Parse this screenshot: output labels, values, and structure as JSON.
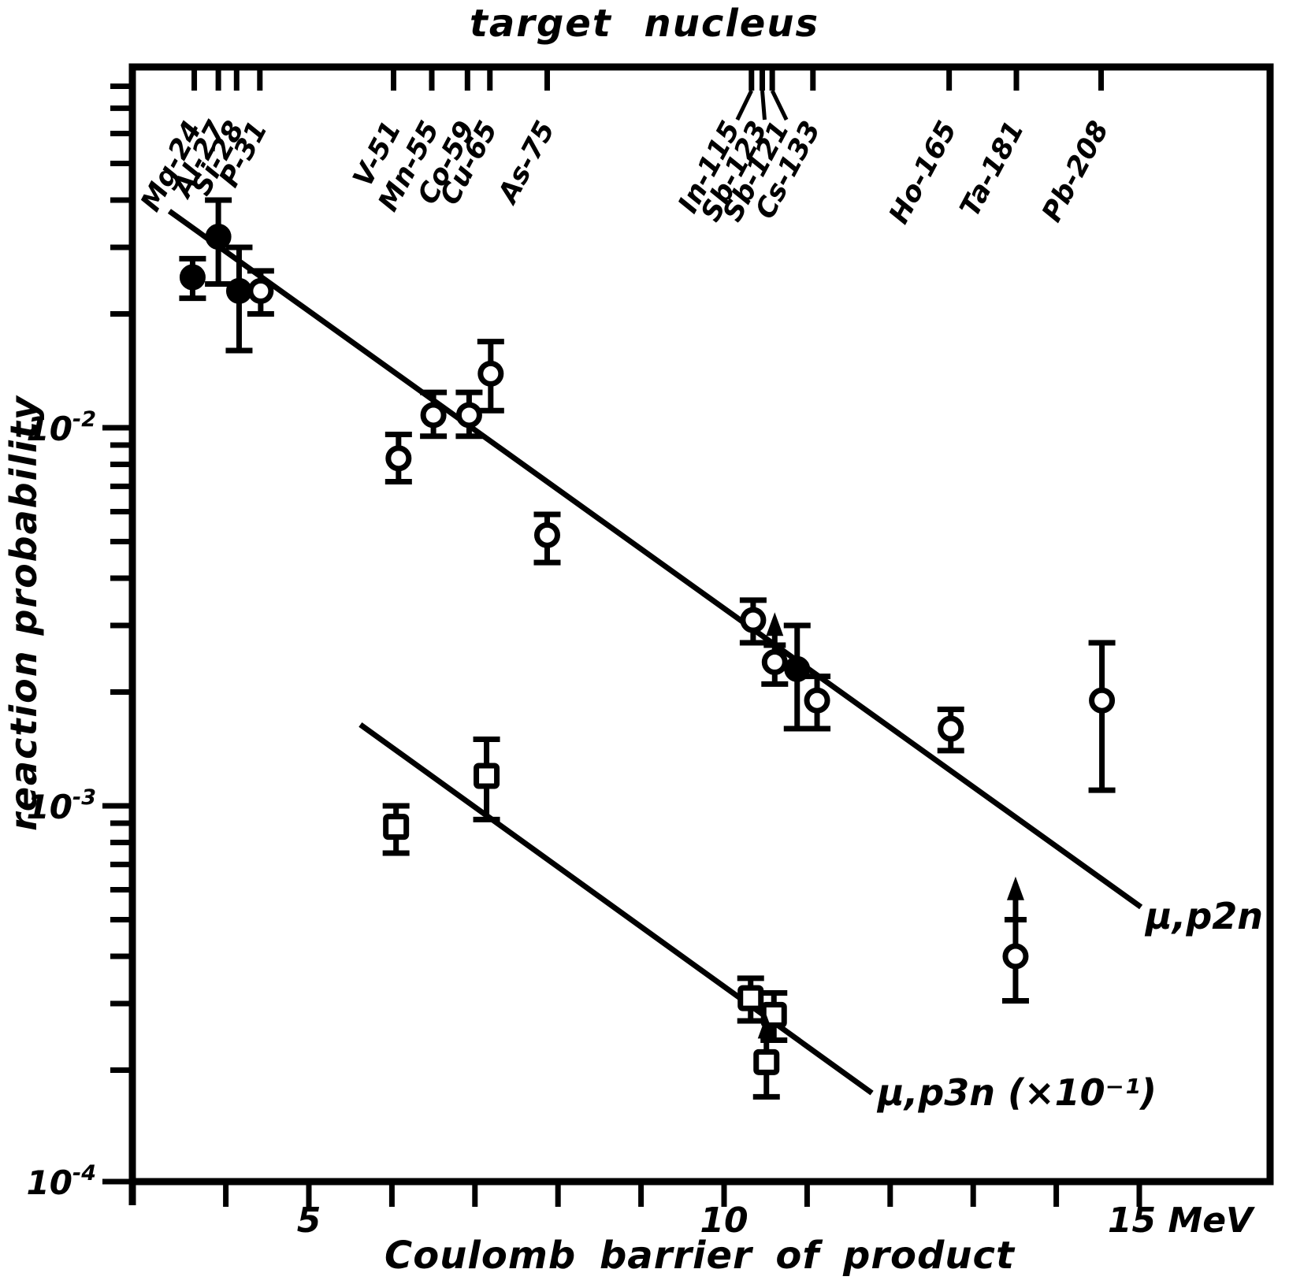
{
  "labels": {
    "top_title": "target nucleus",
    "x_title": "Coulomb barrier of product",
    "y_title": "reaction probability",
    "line_p2n": "μ,p2n",
    "line_p3n": "μ,p3n (×10⁻¹)"
  },
  "colors": {
    "ink": "#000000",
    "paper": "#ffffff"
  },
  "chart_data": {
    "type": "scatter",
    "xlabel": "Coulomb barrier of product",
    "ylabel": "reaction probability",
    "x_unit": "MeV",
    "x_range": [
      2.9,
      16.6
    ],
    "y_range": [
      0.0001,
      0.09
    ],
    "y_scale": "log",
    "grid": false,
    "x_axis": {
      "tick_mevs": [
        4,
        5,
        6,
        7,
        8,
        9,
        10,
        11,
        12,
        13,
        14,
        15
      ],
      "labels": [
        {
          "mev": 5,
          "text": "5",
          "dx": 0
        },
        {
          "mev": 10,
          "text": "10",
          "dx": 0
        },
        {
          "mev": 15,
          "text": "15 MeV",
          "dx": 52
        }
      ]
    },
    "y_axis": {
      "base": "10",
      "major_ticks": [
        {
          "value": 0.01,
          "exp": "-2"
        },
        {
          "value": 0.001,
          "exp": "-3"
        },
        {
          "value": 0.0001,
          "exp": "-4"
        }
      ],
      "minor_decades": [
        -2,
        -3,
        -4
      ]
    },
    "top_axis": {
      "title": "target nucleus",
      "ticks": [
        {
          "name": "Mg-24",
          "mev": 3.62
        },
        {
          "name": "Al-27",
          "mev": 3.91
        },
        {
          "name": "Si-28",
          "mev": 4.13
        },
        {
          "name": "P-31",
          "mev": 4.41
        },
        {
          "name": "V-51",
          "mev": 6.02
        },
        {
          "name": "Mn-55",
          "mev": 6.48
        },
        {
          "name": "Co-59",
          "mev": 6.91
        },
        {
          "name": "Cu-65",
          "mev": 7.18
        },
        {
          "name": "As-75",
          "mev": 7.87
        },
        {
          "name": "In-115",
          "mev": 10.33,
          "label_dx": -14,
          "leader": true
        },
        {
          "name": "Sb-123",
          "mev": 10.46,
          "label_dx": 7,
          "leader": true
        },
        {
          "name": "Sb-121",
          "mev": 10.58,
          "label_dx": 22,
          "leader": true
        },
        {
          "name": "Cs-133",
          "mev": 11.07
        },
        {
          "name": "Ho-165",
          "mev": 12.71
        },
        {
          "name": "Ta-181",
          "mev": 13.52
        },
        {
          "name": "Pb-208",
          "mev": 14.54
        }
      ]
    },
    "series": [
      {
        "name": "mu,p2n",
        "marker": "circle",
        "points": [
          {
            "target": "Mg-24",
            "barrier_mev": 3.6,
            "value": 0.025,
            "err_lo": 0.022,
            "err_hi": 0.028,
            "filled": true
          },
          {
            "target": "Al-27",
            "barrier_mev": 3.91,
            "value": 0.032,
            "err_lo": 0.024,
            "err_hi": 0.04,
            "filled": true
          },
          {
            "target": "Si-28",
            "barrier_mev": 4.16,
            "value": 0.023,
            "err_lo": 0.016,
            "err_hi": 0.03,
            "filled": true
          },
          {
            "target": "P-31",
            "barrier_mev": 4.42,
            "value": 0.023,
            "err_lo": 0.02,
            "err_hi": 0.026,
            "filled": false
          },
          {
            "target": "V-51",
            "barrier_mev": 6.08,
            "value": 0.0083,
            "err_lo": 0.0072,
            "err_hi": 0.0096,
            "filled": false
          },
          {
            "target": "Mn-55",
            "barrier_mev": 6.5,
            "value": 0.0108,
            "err_lo": 0.0095,
            "err_hi": 0.0124,
            "filled": false
          },
          {
            "target": "Co-59",
            "barrier_mev": 6.93,
            "value": 0.0108,
            "err_lo": 0.0095,
            "err_hi": 0.0124,
            "filled": false
          },
          {
            "target": "Cu-65",
            "barrier_mev": 7.19,
            "value": 0.0139,
            "err_lo": 0.0111,
            "err_hi": 0.0169,
            "filled": false
          },
          {
            "target": "As-75",
            "barrier_mev": 7.87,
            "value": 0.0052,
            "err_lo": 0.0044,
            "err_hi": 0.0059,
            "filled": false
          },
          {
            "target": "In-115",
            "barrier_mev": 10.35,
            "value": 0.0031,
            "err_lo": 0.0027,
            "err_hi": 0.0035,
            "filled": false
          },
          {
            "target": "Sb-123",
            "barrier_mev": 10.61,
            "value": 0.0024,
            "err_lo": 0.0021,
            "limit": "lower",
            "arrow_to": 0.00325,
            "cross_at": 0.00266,
            "filled": false
          },
          {
            "target": "Sb-121",
            "barrier_mev": 10.88,
            "value": 0.0023,
            "err_lo": 0.0016,
            "err_hi": 0.003,
            "filled": true
          },
          {
            "target": "Cs-133",
            "barrier_mev": 11.12,
            "value": 0.0019,
            "err_lo": 0.0016,
            "err_hi": 0.0022,
            "filled": false
          },
          {
            "target": "Ho-165",
            "barrier_mev": 12.73,
            "value": 0.0016,
            "err_lo": 0.0014,
            "err_hi": 0.0018,
            "filled": false
          },
          {
            "target": "Ta-181",
            "barrier_mev": 13.51,
            "value": 0.0004,
            "err_lo": 0.000305,
            "limit": "lower",
            "arrow_to": 0.00065,
            "cross_at": 0.0005,
            "filled": false
          },
          {
            "target": "Pb-208",
            "barrier_mev": 14.55,
            "value": 0.0019,
            "err_lo": 0.0011,
            "err_hi": 0.0027,
            "filled": false
          }
        ]
      },
      {
        "name": "mu,p3n (x 10^-1)",
        "marker": "square",
        "scale_note": "×10⁻¹",
        "points": [
          {
            "target": "V-51",
            "barrier_mev": 6.05,
            "value": 0.00088,
            "err_lo": 0.00075,
            "err_hi": 0.001
          },
          {
            "target": "Cu-65",
            "barrier_mev": 7.14,
            "value": 0.0012,
            "err_lo": 0.00092,
            "err_hi": 0.0015
          },
          {
            "target": "In-115",
            "barrier_mev": 10.32,
            "value": 0.00031,
            "err_lo": 0.00027,
            "err_hi": 0.00035
          },
          {
            "target": "Sb-121",
            "barrier_mev": 10.6,
            "value": 0.00028,
            "err_lo": 0.00024,
            "err_hi": 0.00032
          },
          {
            "target": "Sb-123",
            "barrier_mev": 10.51,
            "value": 0.00021,
            "err_lo": 0.00017,
            "limit": "lower",
            "arrow_to": 0.00028
          }
        ]
      }
    ],
    "fit_lines": [
      {
        "label": "μ,p2n",
        "x1": 3.32,
        "v1": 0.0374,
        "x2": 15.02,
        "v2": 0.00054
      },
      {
        "label": "μ,p3n (×10⁻¹)",
        "x1": 5.62,
        "v1": 0.00164,
        "x2": 11.78,
        "v2": 0.000174
      }
    ]
  }
}
